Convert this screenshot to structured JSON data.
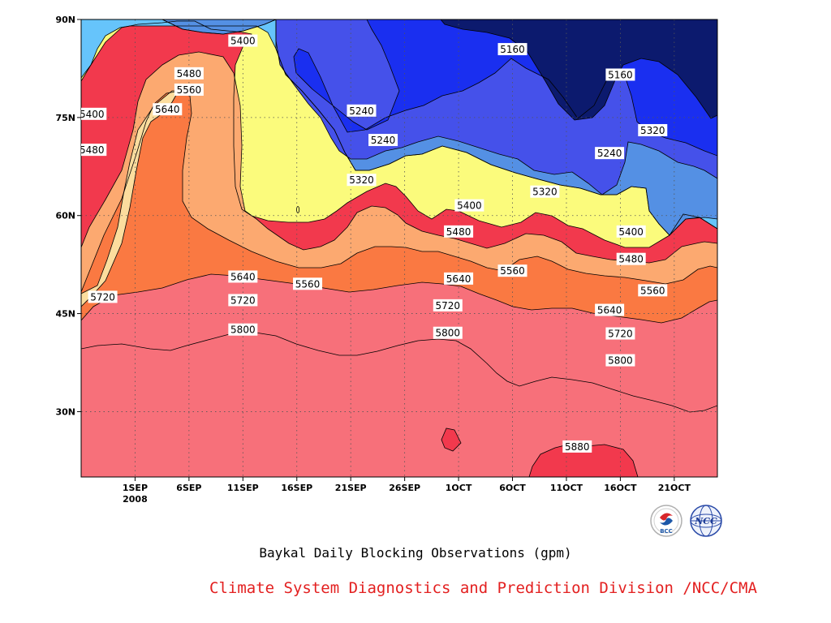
{
  "chart_data": {
    "type": "contour",
    "title": "Baykal Daily Blocking Observations (gpm)",
    "xlabel": "",
    "ylabel": "",
    "x_tick_labels": [
      "1SEP",
      "6SEP",
      "11SEP",
      "16SEP",
      "21SEP",
      "26SEP",
      "1OCT",
      "6OCT",
      "11OCT",
      "16OCT",
      "21OCT"
    ],
    "x_year_label": "2008",
    "y_tick_labels": [
      "30N",
      "45N",
      "60N",
      "75N",
      "90N"
    ],
    "y_ticks_deg": [
      30,
      45,
      60,
      75,
      90
    ],
    "ylim": [
      20,
      90
    ],
    "x_range_days": [
      27,
      86
    ],
    "x_tick_days": [
      32,
      37,
      42,
      47,
      52,
      57,
      62,
      67,
      72,
      77,
      82
    ],
    "contour_levels": [
      5160,
      5240,
      5320,
      5400,
      5480,
      5560,
      5640,
      5720,
      5800,
      5880
    ],
    "fill_colors": [
      "#0c1a6e",
      "#1a2ff0",
      "#4551ea",
      "#5490e4",
      "#66c4fb",
      "#fbfb7c",
      "#fcdd9e",
      "#fca970",
      "#fa7942",
      "#f7707a",
      "#f2394d"
    ],
    "contour_labels": [
      {
        "text": "5400",
        "day": 42,
        "lat": 86.7
      },
      {
        "text": "5480",
        "day": 37,
        "lat": 81.7
      },
      {
        "text": "5560",
        "day": 37,
        "lat": 79.2
      },
      {
        "text": "5640",
        "day": 35,
        "lat": 76.2
      },
      {
        "text": "5400",
        "day": 28,
        "lat": 75.5
      },
      {
        "text": "5480",
        "day": 28,
        "lat": 70.0
      },
      {
        "text": "5160",
        "day": 67,
        "lat": 85.4
      },
      {
        "text": "5160",
        "day": 77,
        "lat": 81.5
      },
      {
        "text": "5240",
        "day": 53,
        "lat": 76.0
      },
      {
        "text": "5240",
        "day": 55,
        "lat": 71.5
      },
      {
        "text": "5240",
        "day": 76,
        "lat": 69.5
      },
      {
        "text": "5320",
        "day": 80,
        "lat": 73.0
      },
      {
        "text": "5320",
        "day": 53,
        "lat": 65.4
      },
      {
        "text": "5320",
        "day": 70,
        "lat": 63.6
      },
      {
        "text": "5400",
        "day": 63,
        "lat": 61.5
      },
      {
        "text": "5400",
        "day": 78,
        "lat": 57.5
      },
      {
        "text": "5480",
        "day": 62,
        "lat": 57.5
      },
      {
        "text": "5480",
        "day": 78,
        "lat": 53.3
      },
      {
        "text": "5560",
        "day": 48,
        "lat": 49.5
      },
      {
        "text": "5560",
        "day": 67,
        "lat": 51.5
      },
      {
        "text": "5560",
        "day": 80,
        "lat": 48.5
      },
      {
        "text": "5640",
        "day": 42,
        "lat": 50.6
      },
      {
        "text": "5640",
        "day": 62,
        "lat": 50.3
      },
      {
        "text": "5640",
        "day": 76,
        "lat": 45.5
      },
      {
        "text": "5720",
        "day": 29,
        "lat": 47.5
      },
      {
        "text": "5720",
        "day": 42,
        "lat": 47.0
      },
      {
        "text": "5720",
        "day": 61,
        "lat": 46.2
      },
      {
        "text": "5720",
        "day": 77,
        "lat": 41.9
      },
      {
        "text": "5800",
        "day": 42,
        "lat": 42.5
      },
      {
        "text": "5800",
        "day": 61,
        "lat": 42.0
      },
      {
        "text": "5800",
        "day": 77,
        "lat": 37.8
      },
      {
        "text": "5880",
        "day": 73,
        "lat": 24.6
      }
    ],
    "grid": true,
    "grid_style": "dotted"
  },
  "footer": {
    "credit": "Climate System Diagnostics and Prediction Division /NCC/CMA"
  },
  "logos": [
    {
      "name": "bcc-logo",
      "text": "BCC"
    },
    {
      "name": "ncc-logo",
      "text": "NCC"
    }
  ],
  "colors": {
    "credit": "#e32020",
    "contour_line": "#000000"
  }
}
